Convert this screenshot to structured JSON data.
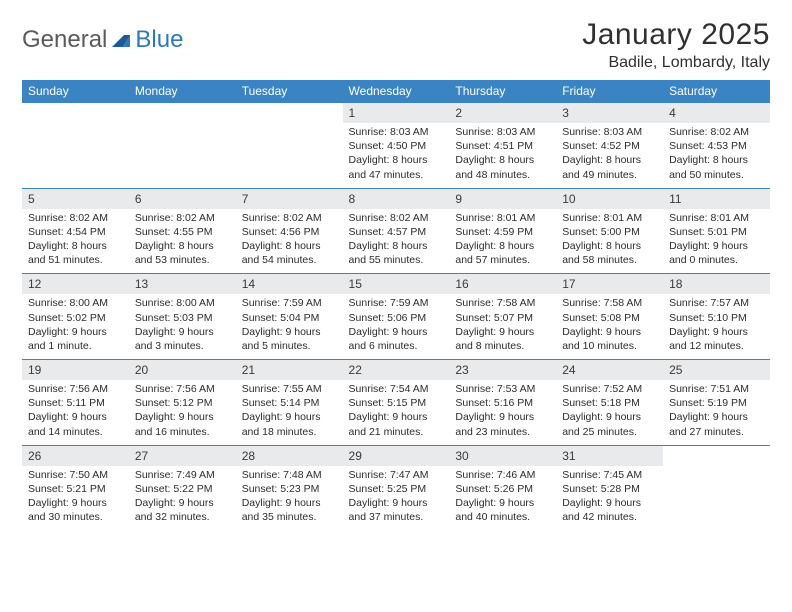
{
  "logo": {
    "part1": "General",
    "part2": "Blue"
  },
  "title": "January 2025",
  "location": "Badile, Lombardy, Italy",
  "colors": {
    "header_bg": "#3a84c4",
    "header_text": "#ffffff",
    "daynum_bg": "#e9eaec",
    "rule": "#3a84c4",
    "logo_gray": "#5b5b5b",
    "logo_blue": "#2f77bb",
    "title_color": "#303030",
    "body_text": "#2c2c2c",
    "background": "#ffffff"
  },
  "typography": {
    "title_fontsize": 30,
    "location_fontsize": 16,
    "dayhead_fontsize": 12,
    "daynum_fontsize": 12,
    "cell_fontsize": 10.5
  },
  "day_headers": [
    "Sunday",
    "Monday",
    "Tuesday",
    "Wednesday",
    "Thursday",
    "Friday",
    "Saturday"
  ],
  "weeks": [
    [
      null,
      null,
      null,
      {
        "n": "1",
        "sunrise": "8:03 AM",
        "sunset": "4:50 PM",
        "daylight": "8 hours and 47 minutes."
      },
      {
        "n": "2",
        "sunrise": "8:03 AM",
        "sunset": "4:51 PM",
        "daylight": "8 hours and 48 minutes."
      },
      {
        "n": "3",
        "sunrise": "8:03 AM",
        "sunset": "4:52 PM",
        "daylight": "8 hours and 49 minutes."
      },
      {
        "n": "4",
        "sunrise": "8:02 AM",
        "sunset": "4:53 PM",
        "daylight": "8 hours and 50 minutes."
      }
    ],
    [
      {
        "n": "5",
        "sunrise": "8:02 AM",
        "sunset": "4:54 PM",
        "daylight": "8 hours and 51 minutes."
      },
      {
        "n": "6",
        "sunrise": "8:02 AM",
        "sunset": "4:55 PM",
        "daylight": "8 hours and 53 minutes."
      },
      {
        "n": "7",
        "sunrise": "8:02 AM",
        "sunset": "4:56 PM",
        "daylight": "8 hours and 54 minutes."
      },
      {
        "n": "8",
        "sunrise": "8:02 AM",
        "sunset": "4:57 PM",
        "daylight": "8 hours and 55 minutes."
      },
      {
        "n": "9",
        "sunrise": "8:01 AM",
        "sunset": "4:59 PM",
        "daylight": "8 hours and 57 minutes."
      },
      {
        "n": "10",
        "sunrise": "8:01 AM",
        "sunset": "5:00 PM",
        "daylight": "8 hours and 58 minutes."
      },
      {
        "n": "11",
        "sunrise": "8:01 AM",
        "sunset": "5:01 PM",
        "daylight": "9 hours and 0 minutes."
      }
    ],
    [
      {
        "n": "12",
        "sunrise": "8:00 AM",
        "sunset": "5:02 PM",
        "daylight": "9 hours and 1 minute."
      },
      {
        "n": "13",
        "sunrise": "8:00 AM",
        "sunset": "5:03 PM",
        "daylight": "9 hours and 3 minutes."
      },
      {
        "n": "14",
        "sunrise": "7:59 AM",
        "sunset": "5:04 PM",
        "daylight": "9 hours and 5 minutes."
      },
      {
        "n": "15",
        "sunrise": "7:59 AM",
        "sunset": "5:06 PM",
        "daylight": "9 hours and 6 minutes."
      },
      {
        "n": "16",
        "sunrise": "7:58 AM",
        "sunset": "5:07 PM",
        "daylight": "9 hours and 8 minutes."
      },
      {
        "n": "17",
        "sunrise": "7:58 AM",
        "sunset": "5:08 PM",
        "daylight": "9 hours and 10 minutes."
      },
      {
        "n": "18",
        "sunrise": "7:57 AM",
        "sunset": "5:10 PM",
        "daylight": "9 hours and 12 minutes."
      }
    ],
    [
      {
        "n": "19",
        "sunrise": "7:56 AM",
        "sunset": "5:11 PM",
        "daylight": "9 hours and 14 minutes."
      },
      {
        "n": "20",
        "sunrise": "7:56 AM",
        "sunset": "5:12 PM",
        "daylight": "9 hours and 16 minutes."
      },
      {
        "n": "21",
        "sunrise": "7:55 AM",
        "sunset": "5:14 PM",
        "daylight": "9 hours and 18 minutes."
      },
      {
        "n": "22",
        "sunrise": "7:54 AM",
        "sunset": "5:15 PM",
        "daylight": "9 hours and 21 minutes."
      },
      {
        "n": "23",
        "sunrise": "7:53 AM",
        "sunset": "5:16 PM",
        "daylight": "9 hours and 23 minutes."
      },
      {
        "n": "24",
        "sunrise": "7:52 AM",
        "sunset": "5:18 PM",
        "daylight": "9 hours and 25 minutes."
      },
      {
        "n": "25",
        "sunrise": "7:51 AM",
        "sunset": "5:19 PM",
        "daylight": "9 hours and 27 minutes."
      }
    ],
    [
      {
        "n": "26",
        "sunrise": "7:50 AM",
        "sunset": "5:21 PM",
        "daylight": "9 hours and 30 minutes."
      },
      {
        "n": "27",
        "sunrise": "7:49 AM",
        "sunset": "5:22 PM",
        "daylight": "9 hours and 32 minutes."
      },
      {
        "n": "28",
        "sunrise": "7:48 AM",
        "sunset": "5:23 PM",
        "daylight": "9 hours and 35 minutes."
      },
      {
        "n": "29",
        "sunrise": "7:47 AM",
        "sunset": "5:25 PM",
        "daylight": "9 hours and 37 minutes."
      },
      {
        "n": "30",
        "sunrise": "7:46 AM",
        "sunset": "5:26 PM",
        "daylight": "9 hours and 40 minutes."
      },
      {
        "n": "31",
        "sunrise": "7:45 AM",
        "sunset": "5:28 PM",
        "daylight": "9 hours and 42 minutes."
      },
      null
    ]
  ],
  "labels": {
    "sunrise": "Sunrise: ",
    "sunset": "Sunset: ",
    "daylight": "Daylight: "
  }
}
